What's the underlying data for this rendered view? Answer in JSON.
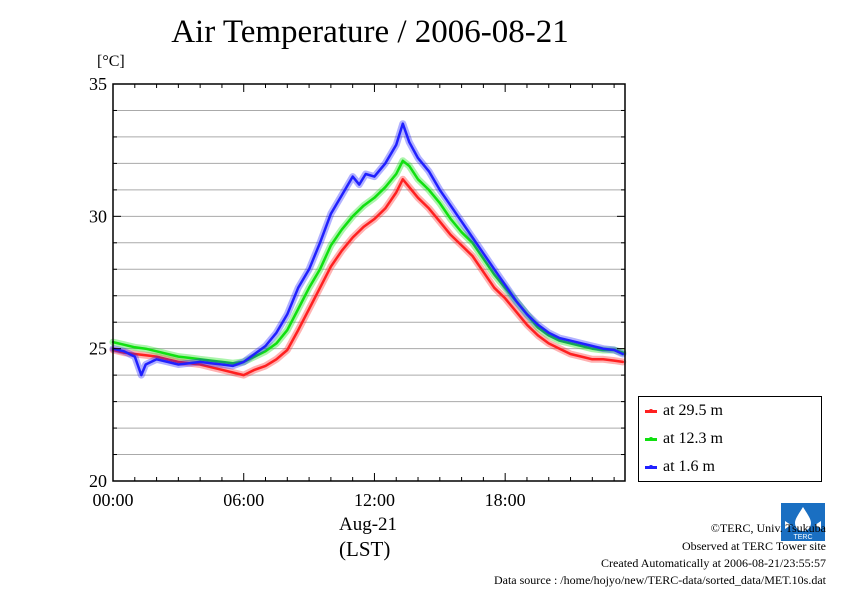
{
  "chart_data": {
    "type": "line",
    "title": "Air Temperature / 2006-08-21",
    "ylabel": "[°C]",
    "xlabel": "Aug-21",
    "xlabel2": "(LST)",
    "xlim": [
      0,
      23.5
    ],
    "ylim": [
      20,
      35
    ],
    "x_ticks": [
      {
        "value": 0,
        "label": "00:00"
      },
      {
        "value": 6,
        "label": "06:00"
      },
      {
        "value": 12,
        "label": "12:00"
      },
      {
        "value": 18,
        "label": "18:00"
      }
    ],
    "y_ticks": [
      {
        "value": 20,
        "label": "20"
      },
      {
        "value": 25,
        "label": "25"
      },
      {
        "value": 30,
        "label": "30"
      },
      {
        "value": 35,
        "label": "35"
      }
    ],
    "grid": true,
    "legend_position": "bottom-right outside",
    "series": [
      {
        "name": "at 29.5 m",
        "color": "#ff2020",
        "x": [
          0,
          0.5,
          1,
          1.5,
          2,
          2.5,
          3,
          3.5,
          4,
          4.5,
          5,
          5.5,
          6,
          6.5,
          7,
          7.5,
          8,
          8.5,
          9,
          9.5,
          10,
          10.5,
          11,
          11.5,
          12,
          12.5,
          13,
          13.3,
          13.6,
          14,
          14.5,
          15,
          15.5,
          16,
          16.5,
          17,
          17.5,
          18,
          18.5,
          19,
          19.5,
          20,
          20.5,
          21,
          21.5,
          22,
          22.5,
          23,
          23.4
        ],
        "y": [
          24.95,
          24.85,
          24.8,
          24.75,
          24.7,
          24.6,
          24.5,
          24.45,
          24.4,
          24.3,
          24.2,
          24.1,
          24.0,
          24.2,
          24.35,
          24.6,
          24.95,
          25.7,
          26.5,
          27.3,
          28.1,
          28.7,
          29.2,
          29.6,
          29.9,
          30.3,
          30.9,
          31.4,
          31.1,
          30.7,
          30.3,
          29.8,
          29.3,
          28.9,
          28.5,
          27.9,
          27.3,
          26.9,
          26.4,
          25.9,
          25.5,
          25.2,
          25.0,
          24.8,
          24.7,
          24.6,
          24.6,
          24.55,
          24.5
        ]
      },
      {
        "name": "at 12.3 m",
        "color": "#10e010",
        "x": [
          0,
          0.5,
          1,
          1.5,
          2,
          2.5,
          3,
          3.5,
          4,
          4.5,
          5,
          5.5,
          6,
          6.5,
          7,
          7.5,
          8,
          8.5,
          9,
          9.5,
          10,
          10.5,
          11,
          11.5,
          12,
          12.5,
          13,
          13.3,
          13.6,
          14,
          14.5,
          15,
          15.5,
          16,
          16.5,
          17,
          17.5,
          18,
          18.5,
          19,
          19.5,
          20,
          20.5,
          21,
          21.5,
          22,
          22.5,
          23,
          23.4
        ],
        "y": [
          25.25,
          25.15,
          25.05,
          25.0,
          24.9,
          24.8,
          24.7,
          24.65,
          24.6,
          24.55,
          24.5,
          24.45,
          24.5,
          24.7,
          24.9,
          25.2,
          25.7,
          26.5,
          27.3,
          28.0,
          28.9,
          29.5,
          30.0,
          30.4,
          30.7,
          31.1,
          31.6,
          32.1,
          31.9,
          31.4,
          31.0,
          30.5,
          29.9,
          29.4,
          29.0,
          28.4,
          27.8,
          27.3,
          26.8,
          26.3,
          25.8,
          25.5,
          25.3,
          25.2,
          25.1,
          25.0,
          24.95,
          24.95,
          24.85
        ]
      },
      {
        "name": "at 1.6 m",
        "color": "#2020ff",
        "x": [
          0,
          0.5,
          1,
          1.3,
          1.5,
          2,
          2.5,
          3,
          3.5,
          4,
          4.5,
          5,
          5.5,
          6,
          6.5,
          7,
          7.5,
          8,
          8.5,
          9,
          9.5,
          10,
          10.5,
          11,
          11.3,
          11.6,
          12,
          12.5,
          13,
          13.3,
          13.6,
          14,
          14.5,
          15,
          15.5,
          16,
          16.5,
          17,
          17.5,
          18,
          18.5,
          19,
          19.5,
          20,
          20.5,
          21,
          21.5,
          22,
          22.5,
          23,
          23.4
        ],
        "y": [
          25.0,
          24.9,
          24.7,
          24.0,
          24.4,
          24.6,
          24.5,
          24.4,
          24.45,
          24.5,
          24.45,
          24.4,
          24.35,
          24.5,
          24.8,
          25.1,
          25.6,
          26.3,
          27.3,
          28.0,
          29.0,
          30.1,
          30.8,
          31.5,
          31.2,
          31.6,
          31.5,
          32.0,
          32.7,
          33.5,
          32.8,
          32.2,
          31.7,
          31.0,
          30.4,
          29.8,
          29.2,
          28.6,
          28.0,
          27.4,
          26.8,
          26.3,
          25.9,
          25.6,
          25.4,
          25.3,
          25.2,
          25.1,
          25.0,
          24.95,
          24.8
        ]
      }
    ]
  },
  "credits": {
    "copyright": "©TERC, Univ. Tsukuba",
    "site": "Observed at TERC Tower site",
    "created": "Created Automatically at 2006-08-21/23:55:57",
    "source": "Data source : /home/hojyo/new/TERC-data/sorted_data/MET.10s.dat"
  },
  "logo_text": "TERC"
}
